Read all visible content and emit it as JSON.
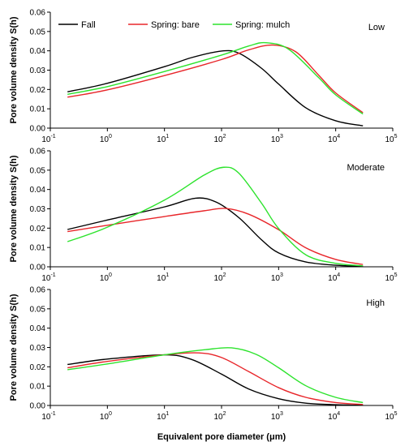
{
  "chart_data": {
    "type": "line",
    "x_scale": "log",
    "xlim": [
      0.1,
      100000
    ],
    "x_tick_labels": [
      {
        "base": "10",
        "exp": "-1"
      },
      {
        "base": "10",
        "exp": "0"
      },
      {
        "base": "10",
        "exp": "1"
      },
      {
        "base": "10",
        "exp": "2"
      },
      {
        "base": "10",
        "exp": "3"
      },
      {
        "base": "10",
        "exp": "4"
      },
      {
        "base": "10",
        "exp": "5"
      }
    ],
    "xlabel": "Equivalent pore diameter (μm)",
    "ylabel": "Pore volume density S(h)",
    "ylim": [
      0,
      0.06
    ],
    "y_tick_labels": [
      "0.00",
      "0.01",
      "0.02",
      "0.03",
      "0.04",
      "0.05",
      "0.06"
    ],
    "grid": false,
    "legend_position": "top",
    "legend": [
      {
        "name": "Fall",
        "color": "#000000"
      },
      {
        "name": "Spring: bare",
        "color": "#e8262a"
      },
      {
        "name": "Spring: mulch",
        "color": "#2de32d"
      }
    ],
    "x": [
      0.2,
      1,
      10,
      100,
      1000,
      10000,
      30000
    ],
    "panels": [
      {
        "label": "Low",
        "series": [
          {
            "name": "Fall",
            "color": "#000000",
            "points": [
              [
                0.2,
                0.0188
              ],
              [
                1,
                0.0232
              ],
              [
                10,
                0.0318
              ],
              [
                30,
                0.0365
              ],
              [
                100,
                0.0399
              ],
              [
                200,
                0.0388
              ],
              [
                500,
                0.031
              ],
              [
                1000,
                0.0228
              ],
              [
                3000,
                0.0105
              ],
              [
                10000,
                0.0038
              ],
              [
                30000,
                0.0012
              ]
            ]
          },
          {
            "name": "Spring: bare",
            "color": "#e8262a",
            "points": [
              [
                0.2,
                0.016
              ],
              [
                1,
                0.0198
              ],
              [
                10,
                0.0272
              ],
              [
                100,
                0.0355
              ],
              [
                300,
                0.0405
              ],
              [
                800,
                0.043
              ],
              [
                2000,
                0.0395
              ],
              [
                5000,
                0.0275
              ],
              [
                10000,
                0.0182
              ],
              [
                30000,
                0.008
              ]
            ]
          },
          {
            "name": "Spring: mulch",
            "color": "#2de32d",
            "points": [
              [
                0.2,
                0.0175
              ],
              [
                1,
                0.0215
              ],
              [
                10,
                0.0293
              ],
              [
                100,
                0.0378
              ],
              [
                300,
                0.0425
              ],
              [
                600,
                0.0442
              ],
              [
                1500,
                0.0408
              ],
              [
                5000,
                0.0262
              ],
              [
                10000,
                0.0172
              ],
              [
                30000,
                0.0073
              ]
            ]
          }
        ]
      },
      {
        "label": "Moderate",
        "series": [
          {
            "name": "Fall",
            "color": "#000000",
            "points": [
              [
                0.2,
                0.0193
              ],
              [
                1,
                0.0242
              ],
              [
                10,
                0.031
              ],
              [
                35,
                0.0355
              ],
              [
                80,
                0.0335
              ],
              [
                200,
                0.0255
              ],
              [
                500,
                0.014
              ],
              [
                1000,
                0.0072
              ],
              [
                3000,
                0.0025
              ],
              [
                10000,
                0.0008
              ],
              [
                30000,
                0.0003
              ]
            ]
          },
          {
            "name": "Spring: bare",
            "color": "#e8262a",
            "points": [
              [
                0.2,
                0.0182
              ],
              [
                1,
                0.0215
              ],
              [
                10,
                0.026
              ],
              [
                50,
                0.029
              ],
              [
                120,
                0.0302
              ],
              [
                300,
                0.0272
              ],
              [
                1000,
                0.0192
              ],
              [
                3000,
                0.0098
              ],
              [
                10000,
                0.0038
              ],
              [
                30000,
                0.0012
              ]
            ]
          },
          {
            "name": "Spring: mulch",
            "color": "#2de32d",
            "points": [
              [
                0.2,
                0.013
              ],
              [
                1,
                0.0205
              ],
              [
                10,
                0.0345
              ],
              [
                50,
                0.0475
              ],
              [
                110,
                0.0515
              ],
              [
                200,
                0.0485
              ],
              [
                500,
                0.033
              ],
              [
                1000,
                0.0198
              ],
              [
                3000,
                0.0062
              ],
              [
                10000,
                0.0018
              ],
              [
                30000,
                0.0005
              ]
            ]
          }
        ]
      },
      {
        "label": "High",
        "series": [
          {
            "name": "Fall",
            "color": "#000000",
            "points": [
              [
                0.2,
                0.0212
              ],
              [
                1,
                0.024
              ],
              [
                10,
                0.0262
              ],
              [
                30,
                0.0238
              ],
              [
                100,
                0.0162
              ],
              [
                300,
                0.0085
              ],
              [
                1000,
                0.0035
              ],
              [
                3000,
                0.0012
              ],
              [
                10000,
                0.0004
              ],
              [
                30000,
                0.0001
              ]
            ]
          },
          {
            "name": "Spring: bare",
            "color": "#e8262a",
            "points": [
              [
                0.2,
                0.0195
              ],
              [
                1,
                0.0228
              ],
              [
                10,
                0.0262
              ],
              [
                40,
                0.0272
              ],
              [
                100,
                0.0248
              ],
              [
                300,
                0.0175
              ],
              [
                1000,
                0.0092
              ],
              [
                3000,
                0.0042
              ],
              [
                10000,
                0.0015
              ],
              [
                30000,
                0.0005
              ]
            ]
          },
          {
            "name": "Spring: mulch",
            "color": "#2de32d",
            "points": [
              [
                0.2,
                0.0185
              ],
              [
                1,
                0.0215
              ],
              [
                10,
                0.0262
              ],
              [
                50,
                0.0288
              ],
              [
                150,
                0.0298
              ],
              [
                400,
                0.0265
              ],
              [
                1000,
                0.0195
              ],
              [
                3000,
                0.0102
              ],
              [
                10000,
                0.0042
              ],
              [
                30000,
                0.0015
              ]
            ]
          }
        ]
      }
    ]
  }
}
